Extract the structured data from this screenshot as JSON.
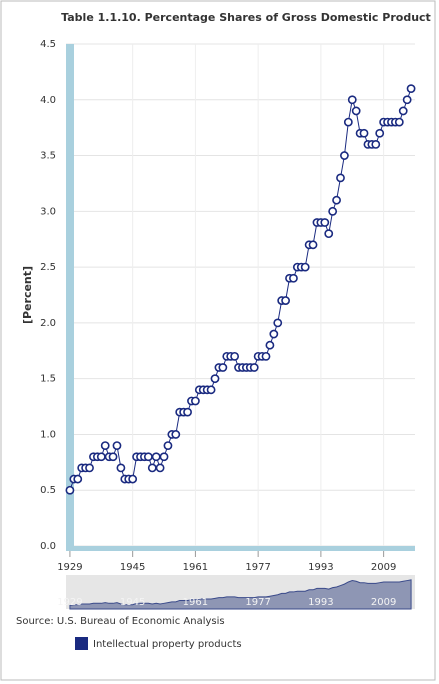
{
  "chart_data": {
    "type": "line",
    "title": "Table 1.1.10. Percentage Shares of Gross Domestic Product",
    "y_label": "[Percent]",
    "source": "Source: U.S. Bureau of Economic Analysis",
    "x": [
      1929,
      1930,
      1931,
      1932,
      1933,
      1934,
      1935,
      1936,
      1937,
      1938,
      1939,
      1940,
      1941,
      1942,
      1943,
      1944,
      1945,
      1946,
      1947,
      1948,
      1949,
      1950,
      1951,
      1952,
      1953,
      1954,
      1955,
      1956,
      1957,
      1958,
      1959,
      1960,
      1961,
      1962,
      1963,
      1964,
      1965,
      1966,
      1967,
      1968,
      1969,
      1970,
      1971,
      1972,
      1973,
      1974,
      1975,
      1976,
      1977,
      1978,
      1979,
      1980,
      1981,
      1982,
      1983,
      1984,
      1985,
      1986,
      1987,
      1988,
      1989,
      1990,
      1991,
      1992,
      1993,
      1994,
      1995,
      1996,
      1997,
      1998,
      1999,
      2000,
      2001,
      2002,
      2003,
      2004,
      2005,
      2006,
      2007,
      2008,
      2009,
      2010,
      2011,
      2012,
      2013,
      2014,
      2015,
      2016
    ],
    "series": [
      {
        "name": "Intellectual property products",
        "color": "#1a2a80",
        "values": [
          0.5,
          0.6,
          0.6,
          0.7,
          0.7,
          0.7,
          0.8,
          0.8,
          0.8,
          0.9,
          0.8,
          0.8,
          0.9,
          0.7,
          0.6,
          0.6,
          0.6,
          0.8,
          0.8,
          0.8,
          0.8,
          0.7,
          0.8,
          0.7,
          0.8,
          0.9,
          1.0,
          1.0,
          1.2,
          1.2,
          1.2,
          1.3,
          1.3,
          1.4,
          1.4,
          1.4,
          1.4,
          1.5,
          1.6,
          1.6,
          1.7,
          1.7,
          1.7,
          1.6,
          1.6,
          1.6,
          1.6,
          1.6,
          1.7,
          1.7,
          1.7,
          1.8,
          1.9,
          2.0,
          2.2,
          2.2,
          2.4,
          2.4,
          2.5,
          2.5,
          2.5,
          2.7,
          2.7,
          2.9,
          2.9,
          2.9,
          2.8,
          3.0,
          3.1,
          3.3,
          3.5,
          3.8,
          4.0,
          3.9,
          3.7,
          3.7,
          3.6,
          3.6,
          3.6,
          3.7,
          3.8,
          3.8,
          3.8,
          3.8,
          3.8,
          3.9,
          4.0,
          4.1
        ]
      }
    ],
    "xlim": [
      1928,
      2017
    ],
    "xticks": [
      1929,
      1945,
      1961,
      1977,
      1993,
      2009
    ],
    "ylim": [
      0,
      4.5
    ],
    "yticks": [
      {
        "value": 0,
        "label": "0.0"
      },
      0.5,
      {
        "value": 1,
        "label": "1.0"
      },
      1.5,
      {
        "value": 2,
        "label": "2.0"
      },
      2.5,
      {
        "value": 3,
        "label": "3.0"
      },
      3.5,
      {
        "value": 4,
        "label": "4.0"
      },
      4.5
    ],
    "grid": true
  }
}
